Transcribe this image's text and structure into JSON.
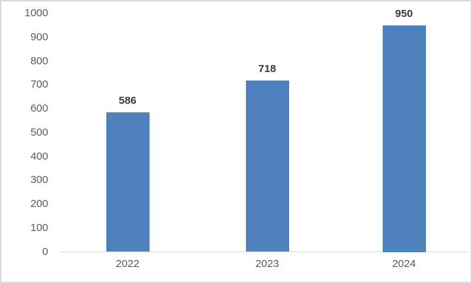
{
  "chart_data": {
    "type": "bar",
    "categories": [
      "2022",
      "2023",
      "2024"
    ],
    "values": [
      586,
      718,
      950
    ],
    "series_name": "",
    "title": "",
    "xlabel": "",
    "ylabel": "",
    "ylim": [
      0,
      1000
    ],
    "ytick_step": 100,
    "ytick_labels": [
      "0",
      "100",
      "200",
      "300",
      "400",
      "500",
      "600",
      "700",
      "800",
      "900",
      "1000"
    ],
    "data_labels": [
      "586",
      "718",
      "950"
    ],
    "grid": false,
    "legend": false,
    "bar_color": "#4E81BD",
    "axis_line_color": "#d9d9d9",
    "tick_label_color": "#595959",
    "data_label_color": "#3a3a3a",
    "frame_border_color": "#d9d9d9",
    "background_color": "#ffffff"
  }
}
